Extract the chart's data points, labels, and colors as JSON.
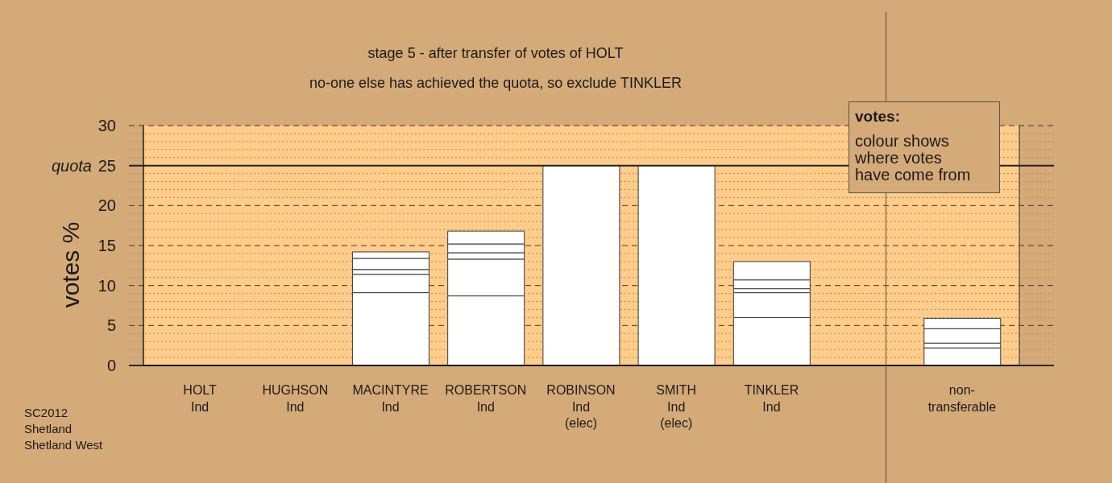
{
  "chart_data": {
    "type": "bar",
    "title": "stage 5 - after transfer of votes of HOLT",
    "subtitle": "no-one else has achieved the quota, so exclude TINKLER",
    "ylabel": "votes %",
    "legend_title": "votes:",
    "annotations": [
      "colour shows\nwhere votes\nhave come from",
      "SC2012\nShetland\nShetland West"
    ],
    "categories": [
      "HOLT\nInd",
      "HUGHSON\nInd",
      "MACINTYRE\nInd",
      "ROBERTSON\nInd",
      "ROBINSON\nInd\n(elec)",
      "SMITH\nInd\n(elec)",
      "TINKLER\nInd",
      null,
      "non-\ntransferable"
    ],
    "stacked": true,
    "series": [
      {
        "color": "#ffffff",
        "values": [
          null,
          null,
          9.1,
          8.7,
          25,
          25,
          6.0,
          null,
          2.2
        ]
      },
      {
        "color": "#ffffff",
        "values": [
          null,
          null,
          2.3,
          4.6,
          null,
          null,
          3.1,
          null,
          0.6
        ]
      },
      {
        "color": "#ffffff",
        "values": [
          null,
          null,
          0.6,
          0.8,
          null,
          null,
          0.5,
          null,
          1.8
        ]
      },
      {
        "color": "#ffffff",
        "values": [
          null,
          null,
          1.4,
          1.1,
          null,
          null,
          1.1,
          null,
          1.3
        ]
      },
      {
        "color": "#ffffff",
        "values": [
          null,
          null,
          0.8,
          1.6,
          null,
          null,
          2.3,
          null,
          null
        ]
      }
    ],
    "ylim": [
      0,
      30
    ],
    "yticks": [
      0,
      {
        "value": 1,
        "label": null
      },
      {
        "value": 2,
        "label": null
      },
      {
        "value": 3,
        "label": null
      },
      {
        "value": 4,
        "label": null
      },
      5,
      {
        "value": 6,
        "label": null
      },
      {
        "value": 7,
        "label": null
      },
      {
        "value": 8,
        "label": null
      },
      {
        "value": 9,
        "label": null
      },
      10,
      {
        "value": 11,
        "label": null
      },
      {
        "value": 12,
        "label": null
      },
      {
        "value": 13,
        "label": null
      },
      {
        "value": 14,
        "label": null
      },
      15,
      {
        "value": 16,
        "label": null
      },
      {
        "value": 17,
        "label": null
      },
      {
        "value": 18,
        "label": null
      },
      {
        "value": 19,
        "label": null
      },
      20,
      {
        "value": 21,
        "label": null
      },
      {
        "value": 22,
        "label": null
      },
      {
        "value": 23,
        "label": null
      },
      {
        "value": 24,
        "label": null
      },
      25,
      {
        "value": 26,
        "label": null
      },
      {
        "value": 27,
        "label": null
      },
      {
        "value": 28,
        "label": null
      },
      {
        "value": 29,
        "label": null
      },
      30
    ],
    "grid": "y",
    "ref_lines": [
      {
        "axis": "y",
        "value": 25,
        "label": "quota",
        "color": "#222222"
      }
    ]
  }
}
